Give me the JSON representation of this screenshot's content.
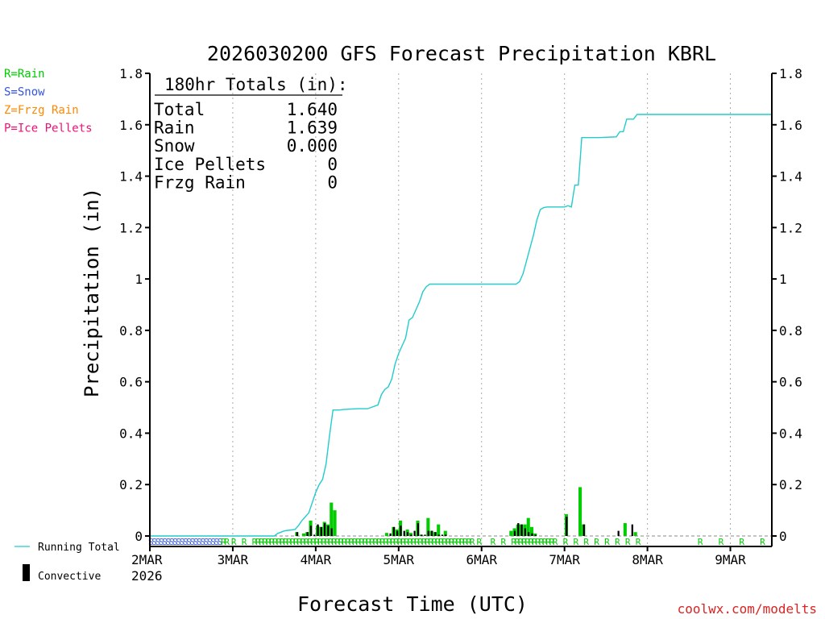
{
  "chart_data": {
    "type": "bar+line",
    "title": "2026030200 GFS Forecast Precipitation KBRL",
    "xlabel": "Forecast Time (UTC)",
    "ylabel": "Precipitation (in)",
    "ylim": [
      0,
      1.8
    ],
    "yticks": [
      0,
      0.2,
      0.4,
      0.6,
      0.8,
      1,
      1.2,
      1.4,
      1.6,
      1.8
    ],
    "ytick_labels": [
      "0",
      "0.2",
      "0.4",
      "0.6",
      "0.8",
      "1",
      "1.2",
      "1.4",
      "1.6",
      "1.8"
    ],
    "x_unit": "forecast hours",
    "xlim": [
      0,
      180
    ],
    "xticks": [
      0,
      24,
      48,
      72,
      96,
      120,
      144,
      168
    ],
    "xtick_labels": [
      "2MAR",
      "3MAR",
      "4MAR",
      "5MAR",
      "6MAR",
      "7MAR",
      "8MAR",
      "9MAR"
    ],
    "first_tick_year": "2026",
    "grid": "vertical dotted at day boundaries",
    "totals_box": {
      "header": "180hr Totals (in):",
      "rows": [
        {
          "label": "Total",
          "value": "1.640"
        },
        {
          "label": "Rain",
          "value": "1.639"
        },
        {
          "label": "Snow",
          "value": "0.000"
        },
        {
          "label": "Ice Pellets",
          "value": "0"
        },
        {
          "label": "Frzg Rain",
          "value": "0"
        }
      ]
    },
    "ptype_legend": [
      {
        "text": "R=Rain",
        "color": "#00cc00"
      },
      {
        "text": "S=Snow",
        "color": "#3355dd"
      },
      {
        "text": "Z=Frzg Rain",
        "color": "#ff8800"
      },
      {
        "text": "P=Ice Pellets",
        "color": "#ee1177"
      }
    ],
    "series_legend": [
      {
        "text": "Running Total",
        "color": "#22cccc",
        "kind": "line"
      },
      {
        "text": "Convective",
        "color": "#000000",
        "kind": "bar"
      }
    ],
    "running_total": {
      "name": "Running Total",
      "color": "#22cccc",
      "hours": [
        0,
        36,
        37,
        38,
        39,
        40,
        42,
        43,
        44,
        45,
        46,
        47,
        48,
        49,
        50,
        51,
        52,
        53,
        54,
        55,
        56,
        60,
        63,
        66,
        67,
        68,
        69,
        70,
        71,
        72,
        73,
        74,
        75,
        76,
        77,
        78,
        79,
        80,
        81,
        82,
        84,
        96,
        106,
        107,
        108,
        109,
        110,
        111,
        112,
        113,
        114,
        115,
        116,
        118,
        120,
        121,
        122,
        123,
        124,
        125,
        126,
        127,
        128,
        129,
        130,
        135,
        136,
        137,
        138,
        140,
        141,
        142,
        144,
        180
      ],
      "values": [
        0,
        0,
        0.01,
        0.015,
        0.02,
        0.022,
        0.025,
        0.04,
        0.06,
        0.075,
        0.09,
        0.13,
        0.17,
        0.2,
        0.22,
        0.28,
        0.39,
        0.49,
        0.49,
        0.49,
        0.492,
        0.495,
        0.495,
        0.51,
        0.55,
        0.57,
        0.58,
        0.61,
        0.67,
        0.71,
        0.74,
        0.77,
        0.84,
        0.85,
        0.88,
        0.91,
        0.95,
        0.97,
        0.98,
        0.98,
        0.98,
        0.98,
        0.98,
        0.99,
        1.02,
        1.07,
        1.12,
        1.17,
        1.23,
        1.27,
        1.278,
        1.28,
        1.28,
        1.28,
        1.28,
        1.285,
        1.28,
        1.365,
        1.365,
        1.55,
        1.55,
        1.55,
        1.55,
        1.55,
        1.55,
        1.553,
        1.573,
        1.573,
        1.622,
        1.622,
        1.64,
        1.64,
        1.64,
        1.64
      ]
    },
    "bars": {
      "name": "Precipitation",
      "color": "#00cc00",
      "hours": [
        43,
        45,
        46,
        47,
        49,
        50,
        51,
        52,
        53,
        54,
        69,
        71,
        72,
        73,
        75,
        76,
        78,
        79,
        81,
        82,
        83,
        84,
        86,
        105,
        106,
        107,
        108,
        109,
        110,
        111,
        112,
        121,
        125,
        126,
        138,
        141
      ],
      "values": [
        0.015,
        0.01,
        0.015,
        0.06,
        0.04,
        0.035,
        0.055,
        0.045,
        0.13,
        0.1,
        0.012,
        0.035,
        0.025,
        0.06,
        0.025,
        0.012,
        0.06,
        0.005,
        0.07,
        0.02,
        0.015,
        0.045,
        0.02,
        0.02,
        0.03,
        0.045,
        0.045,
        0.045,
        0.07,
        0.035,
        0.01,
        0.085,
        0.19,
        0.045,
        0.05,
        0.015
      ]
    },
    "convective": {
      "name": "Convective",
      "color": "#000000",
      "hours": [
        43,
        46,
        47,
        48,
        49,
        50,
        51,
        52,
        53,
        70,
        71,
        72,
        73,
        74,
        75,
        76,
        77,
        78,
        79,
        80,
        81,
        82,
        83,
        84,
        85,
        86,
        106,
        107,
        108,
        109,
        110,
        111,
        112,
        121,
        126,
        136,
        140
      ],
      "values": [
        0.015,
        0.015,
        0.04,
        0.005,
        0.045,
        0.035,
        0.05,
        0.04,
        0.03,
        0.01,
        0.035,
        0.02,
        0.04,
        0.02,
        0.015,
        0.005,
        0.02,
        0.05,
        0.005,
        0.005,
        0.02,
        0.02,
        0.015,
        0.005,
        0.005,
        0.005,
        0.02,
        0.05,
        0.045,
        0.03,
        0.015,
        0.01,
        0.005,
        0.075,
        0.045,
        0.02,
        0.045
      ]
    },
    "ptype_markers": {
      "letters": [
        {
          "hours": [
            0,
            1,
            2,
            3,
            4,
            5,
            6,
            7,
            8,
            9,
            10,
            11,
            12,
            13,
            14,
            15,
            16,
            17,
            18,
            19,
            20
          ],
          "letter": "S",
          "color": "#3355dd"
        },
        {
          "hours": [
            21,
            22,
            24,
            27,
            30,
            31,
            32,
            33,
            34,
            35,
            36,
            37,
            38,
            39,
            40,
            41,
            42,
            43,
            44,
            45,
            46,
            47,
            48,
            49,
            50,
            51,
            52,
            53,
            54,
            55,
            56,
            57,
            58,
            59,
            60,
            61,
            62,
            63,
            64,
            65,
            66,
            67,
            68,
            69,
            70,
            71,
            72,
            73,
            74,
            75,
            76,
            77,
            78,
            79,
            80,
            81,
            82,
            83,
            84,
            85,
            86,
            87,
            88,
            89,
            90,
            91,
            92,
            93,
            95,
            99,
            102,
            105,
            106,
            107,
            108,
            109,
            110,
            111,
            112,
            113,
            114,
            115,
            116,
            117,
            120,
            123,
            126,
            129,
            132,
            135,
            138,
            141,
            159,
            165,
            171,
            177
          ],
          "letter": "R",
          "color": "#00cc00"
        }
      ]
    },
    "credit": "coolwx.com/modelts"
  }
}
